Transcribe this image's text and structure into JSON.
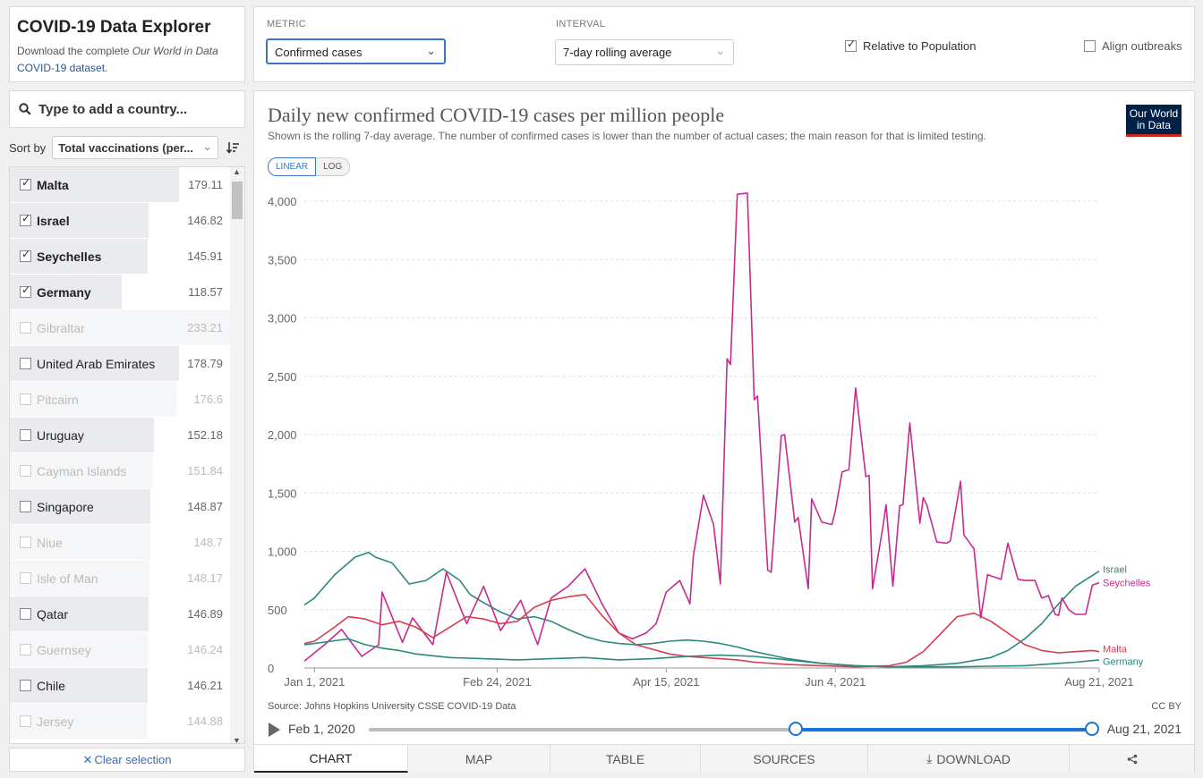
{
  "header": {
    "title": "COVID-19 Data Explorer",
    "subtitle_prefix": "Download the complete",
    "subtitle_link": "Our World in Data",
    "subtitle_suffix": "COVID-19 dataset."
  },
  "controls": {
    "metric_label": "METRIC",
    "metric_value": "Confirmed cases",
    "interval_label": "INTERVAL",
    "interval_value": "7-day rolling average",
    "relative_label": "Relative to Population",
    "relative_checked": true,
    "align_label": "Align outbreaks",
    "align_checked": false
  },
  "sidebar": {
    "search_placeholder": "Type to add a country...",
    "sort_label": "Sort by",
    "sort_value": "Total vaccinations (per...",
    "clear_label": "Clear selection",
    "max_value": 233.21,
    "countries": [
      {
        "name": "Malta",
        "value": "179.11",
        "selected": true,
        "disabled": false
      },
      {
        "name": "Israel",
        "value": "146.82",
        "selected": true,
        "disabled": false
      },
      {
        "name": "Seychelles",
        "value": "145.91",
        "selected": true,
        "disabled": false
      },
      {
        "name": "Germany",
        "value": "118.57",
        "selected": true,
        "disabled": false
      },
      {
        "name": "Gibraltar",
        "value": "233.21",
        "selected": false,
        "disabled": true
      },
      {
        "name": "United Arab Emirates",
        "value": "178.79",
        "selected": false,
        "disabled": false
      },
      {
        "name": "Pitcairn",
        "value": "176.6",
        "selected": false,
        "disabled": true
      },
      {
        "name": "Uruguay",
        "value": "152.18",
        "selected": false,
        "disabled": false
      },
      {
        "name": "Cayman Islands",
        "value": "151.84",
        "selected": false,
        "disabled": true
      },
      {
        "name": "Singapore",
        "value": "148.87",
        "selected": false,
        "disabled": false
      },
      {
        "name": "Niue",
        "value": "148.7",
        "selected": false,
        "disabled": true
      },
      {
        "name": "Isle of Man",
        "value": "148.17",
        "selected": false,
        "disabled": true
      },
      {
        "name": "Qatar",
        "value": "146.89",
        "selected": false,
        "disabled": false
      },
      {
        "name": "Guernsey",
        "value": "146.24",
        "selected": false,
        "disabled": true
      },
      {
        "name": "Chile",
        "value": "146.21",
        "selected": false,
        "disabled": false
      },
      {
        "name": "Jersey",
        "value": "144.88",
        "selected": false,
        "disabled": true
      }
    ]
  },
  "chart": {
    "title": "Daily new confirmed COVID-19 cases per million people",
    "subtitle": "Shown is the rolling 7-day average. The number of confirmed cases is lower than the number of actual cases; the main reason for that is limited testing.",
    "logo_line1": "Our World",
    "logo_line2": "in Data",
    "scale_linear": "LINEAR",
    "scale_log": "LOG",
    "source": "Source: Johns Hopkins University CSSE COVID-19 Data",
    "license": "CC BY"
  },
  "chart_data": {
    "type": "line",
    "title": "Daily new confirmed COVID-19 cases per million people",
    "ylim": [
      0,
      4000
    ],
    "yticks": [
      0,
      500,
      1000,
      1500,
      2000,
      2500,
      3000,
      3500,
      4000
    ],
    "ytick_labels": [
      "0",
      "500",
      "1,000",
      "1,500",
      "2,000",
      "2,500",
      "3,000",
      "3,500",
      "4,000"
    ],
    "xlim": [
      -3,
      232
    ],
    "xticks": [
      0,
      54,
      104,
      154,
      232
    ],
    "xtick_labels": [
      "Jan 1, 2021",
      "Feb 24, 2021",
      "Apr 15, 2021",
      "Jun 4, 2021",
      "Aug 21, 2021"
    ],
    "grid": true,
    "legend": "right-end labels",
    "series": [
      {
        "name": "Israel",
        "color": "#2a8a7c",
        "x": [
          -3,
          0,
          6,
          12,
          16,
          18,
          23,
          28,
          33,
          38,
          43,
          46,
          50,
          55,
          60,
          65,
          70,
          75,
          80,
          85,
          90,
          95,
          100,
          105,
          110,
          115,
          120,
          125,
          130,
          135,
          140,
          145,
          150,
          160,
          170,
          180,
          190,
          200,
          205,
          210,
          215,
          220,
          225,
          232
        ],
        "y": [
          540,
          600,
          800,
          950,
          990,
          950,
          900,
          720,
          750,
          850,
          750,
          630,
          560,
          480,
          420,
          440,
          400,
          330,
          270,
          230,
          210,
          200,
          210,
          230,
          240,
          230,
          210,
          180,
          140,
          110,
          80,
          60,
          40,
          20,
          10,
          20,
          40,
          90,
          150,
          250,
          380,
          550,
          700,
          830
        ]
      },
      {
        "name": "Seychelles",
        "color": "#c52c8f",
        "x": [
          -3,
          3,
          8,
          14,
          19,
          20,
          26,
          29,
          35,
          39,
          45,
          50,
          55,
          61,
          66,
          70,
          75,
          80,
          85,
          90,
          94,
          98,
          101,
          104,
          108,
          111,
          112,
          115,
          118,
          120,
          122,
          123,
          125,
          128,
          130,
          131,
          134,
          135,
          138,
          139,
          142,
          143,
          146,
          147,
          150,
          153,
          154,
          156,
          158,
          160,
          163,
          164,
          165,
          168,
          169,
          171,
          173,
          174,
          176,
          179,
          180,
          181,
          184,
          187,
          188,
          191,
          192,
          195,
          197,
          199,
          201,
          203,
          205,
          208,
          210,
          213,
          215,
          217,
          219,
          220,
          221,
          223,
          225,
          228,
          230,
          232
        ],
        "y": [
          60,
          200,
          330,
          100,
          200,
          650,
          220,
          430,
          200,
          820,
          380,
          700,
          320,
          580,
          200,
          600,
          700,
          850,
          550,
          300,
          250,
          300,
          380,
          650,
          750,
          550,
          960,
          1480,
          1230,
          720,
          2650,
          2600,
          4060,
          4070,
          2300,
          2330,
          840,
          820,
          1990,
          2000,
          1250,
          1290,
          680,
          1450,
          1250,
          1230,
          1350,
          1680,
          1700,
          2400,
          1640,
          1650,
          680,
          1200,
          1400,
          700,
          1390,
          1400,
          2100,
          1240,
          1460,
          1400,
          1080,
          1070,
          1090,
          1600,
          1140,
          1020,
          430,
          800,
          780,
          760,
          1070,
          760,
          750,
          750,
          600,
          620,
          460,
          450,
          600,
          500,
          460,
          460,
          710,
          730
        ]
      },
      {
        "name": "Malta",
        "color": "#d73c50",
        "x": [
          -3,
          0,
          5,
          10,
          15,
          20,
          25,
          30,
          35,
          40,
          45,
          50,
          55,
          60,
          65,
          70,
          75,
          80,
          85,
          90,
          95,
          100,
          105,
          110,
          115,
          120,
          125,
          130,
          140,
          150,
          160,
          170,
          175,
          180,
          185,
          190,
          195,
          200,
          205,
          210,
          215,
          220,
          225,
          230,
          232
        ],
        "y": [
          210,
          230,
          330,
          440,
          420,
          370,
          400,
          350,
          260,
          350,
          440,
          420,
          380,
          400,
          520,
          580,
          610,
          630,
          450,
          300,
          200,
          160,
          120,
          100,
          90,
          80,
          70,
          50,
          30,
          20,
          10,
          20,
          50,
          140,
          290,
          440,
          470,
          400,
          300,
          200,
          150,
          130,
          140,
          150,
          140
        ]
      },
      {
        "name": "Germany",
        "color": "#2a8a7c",
        "x": [
          -3,
          0,
          5,
          10,
          15,
          20,
          25,
          30,
          40,
          50,
          60,
          70,
          80,
          90,
          100,
          110,
          120,
          130,
          140,
          150,
          160,
          170,
          180,
          190,
          200,
          210,
          220,
          225,
          232
        ],
        "y": [
          200,
          210,
          230,
          250,
          200,
          170,
          150,
          120,
          90,
          80,
          70,
          80,
          90,
          70,
          80,
          100,
          110,
          100,
          70,
          40,
          20,
          10,
          10,
          10,
          15,
          20,
          40,
          50,
          70
        ]
      }
    ]
  },
  "timeline": {
    "start_label": "Feb 1, 2020",
    "end_label": "Aug 21, 2021",
    "range_start_fraction": 0.59,
    "range_end_fraction": 1.0
  },
  "tabs": [
    "CHART",
    "MAP",
    "TABLE",
    "SOURCES",
    "DOWNLOAD"
  ],
  "colors": {
    "accent": "#3a75c4",
    "timeline": "#1a73d9"
  }
}
